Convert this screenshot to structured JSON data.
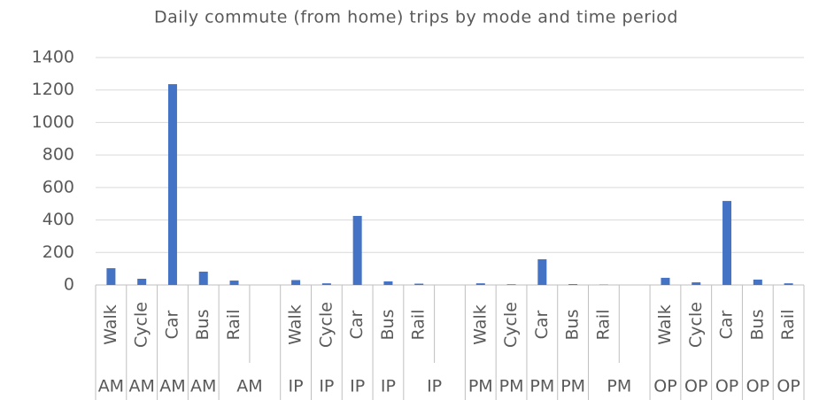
{
  "chart_data": {
    "type": "bar",
    "title": "Daily commute (from home) trips by mode and time period",
    "categories": [
      "Walk",
      "Cycle",
      "Car",
      "Bus",
      "Rail",
      null,
      "Walk",
      "Cycle",
      "Car",
      "Bus",
      "Rail",
      null,
      "Walk",
      "Cycle",
      "Car",
      "Bus",
      "Rail",
      null,
      "Walk",
      "Cycle",
      "Car",
      "Bus",
      "Rail"
    ],
    "groups": [
      "AM",
      "AM",
      "AM",
      "AM",
      "AM",
      null,
      "IP",
      "IP",
      "IP",
      "IP",
      "IP",
      null,
      "PM",
      "PM",
      "PM",
      "PM",
      "PM",
      null,
      "OP",
      "OP",
      "OP",
      "OP",
      "OP"
    ],
    "values": [
      103,
      38,
      1236,
      82,
      27,
      null,
      30,
      10,
      425,
      22,
      8,
      null,
      10,
      4,
      158,
      5,
      2,
      null,
      44,
      16,
      517,
      33,
      10
    ],
    "color": "#4472c4",
    "ylim": [
      0,
      1400
    ],
    "yticks": [
      0,
      200,
      400,
      600,
      800,
      1000,
      1200,
      1400
    ],
    "grid": true
  }
}
